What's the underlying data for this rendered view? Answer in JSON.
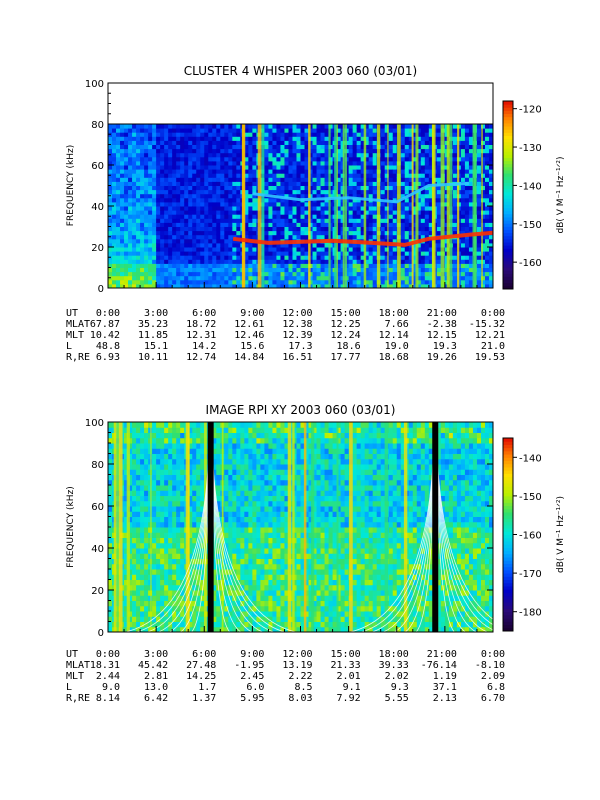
{
  "chart_data": [
    {
      "type": "heatmap",
      "title": "CLUSTER 4 WHISPER 2003 060 (03/01)",
      "ylabel": "FREQUENCY (kHz)",
      "ylim": [
        0,
        100
      ],
      "y_ticks": [
        "0",
        "20",
        "40",
        "60",
        "80",
        "100"
      ],
      "data_ceiling_khz": 80,
      "colorbar": {
        "label": "dB( V M⁻¹ Hz⁻¹ᐟ²)",
        "ticks": [
          "-120",
          "-130",
          "-140",
          "-150",
          "-160"
        ],
        "range": [
          -167,
          -118
        ]
      },
      "colorscale": [
        "#1a0033",
        "#2a0a7a",
        "#0000c8",
        "#0050ff",
        "#00b0ff",
        "#00e8d8",
        "#30e070",
        "#b8f000",
        "#ffe000",
        "#ff8000",
        "#e00000"
      ],
      "emission_bands": [
        {
          "label": "lower band",
          "segments": [
            [
              7.8,
              24
            ],
            [
              10,
              22
            ],
            [
              14,
              23
            ],
            [
              16.5,
              22
            ],
            [
              18.5,
              21
            ],
            [
              20,
              24
            ],
            [
              22.5,
              26
            ],
            [
              24,
              27
            ]
          ]
        },
        {
          "label": "upper band",
          "segments": [
            [
              9,
              46
            ],
            [
              12,
              43
            ],
            [
              15,
              44
            ],
            [
              18,
              42
            ],
            [
              20,
              50
            ],
            [
              22.5,
              51
            ]
          ]
        }
      ],
      "orbit": {
        "rows": [
          {
            "name": "UT",
            "values": [
              "0:00",
              "3:00",
              "6:00",
              "9:00",
              "12:00",
              "15:00",
              "18:00",
              "21:00",
              "0:00"
            ]
          },
          {
            "name": "MLAT",
            "values": [
              "67.87",
              "35.23",
              "18.72",
              "12.61",
              "12.38",
              "12.25",
              "7.66",
              "-2.38",
              "-15.32"
            ]
          },
          {
            "name": "MLT",
            "values": [
              "10.42",
              "11.85",
              "12.31",
              "12.46",
              "12.39",
              "12.24",
              "12.14",
              "12.15",
              "12.21"
            ]
          },
          {
            "name": "L",
            "values": [
              "48.8",
              "15.1",
              "14.2",
              "15.6",
              "17.3",
              "18.6",
              "19.0",
              "19.3",
              "21.0"
            ]
          },
          {
            "name": "R,RE",
            "values": [
              "6.93",
              "10.11",
              "12.74",
              "14.84",
              "16.51",
              "17.77",
              "18.68",
              "19.26",
              "19.53"
            ]
          }
        ]
      }
    },
    {
      "type": "heatmap",
      "title": "IMAGE RPI XY 2003 060 (03/01)",
      "ylabel": "FREQUENCY (kHz)",
      "ylim": [
        0,
        100
      ],
      "y_ticks": [
        "0",
        "20",
        "40",
        "60",
        "80",
        "100"
      ],
      "data_ceiling_khz": 100,
      "colorbar": {
        "label": "dB( V M⁻¹ Hz⁻¹ᐟ²)",
        "ticks": [
          "-140",
          "-150",
          "-160",
          "-170",
          "-180"
        ],
        "range": [
          -185,
          -135
        ]
      },
      "colorscale": [
        "#1a0033",
        "#2a0a7a",
        "#0000c8",
        "#0050ff",
        "#00b0ff",
        "#00e8d8",
        "#30e070",
        "#b8f000",
        "#ffe000",
        "#ff8000",
        "#e00000"
      ],
      "perigee_passes_ut": [
        6.4,
        20.4
      ],
      "orbit": {
        "rows": [
          {
            "name": "UT",
            "values": [
              "0:00",
              "3:00",
              "6:00",
              "9:00",
              "12:00",
              "15:00",
              "18:00",
              "21:00",
              "0:00"
            ]
          },
          {
            "name": "MLAT",
            "values": [
              "18.31",
              "45.42",
              "27.48",
              "-1.95",
              "13.19",
              "21.33",
              "39.33",
              "-76.14",
              "-8.10"
            ]
          },
          {
            "name": "MLT",
            "values": [
              "2.44",
              "2.81",
              "14.25",
              "2.45",
              "2.22",
              "2.01",
              "2.02",
              "1.19",
              "2.09"
            ]
          },
          {
            "name": "L",
            "values": [
              "9.0",
              "13.0",
              "1.7",
              "6.0",
              "8.5",
              "9.1",
              "9.3",
              "37.1",
              "6.8"
            ]
          },
          {
            "name": "R,RE",
            "values": [
              "8.14",
              "6.42",
              "1.37",
              "5.95",
              "8.03",
              "7.92",
              "5.55",
              "2.13",
              "6.70"
            ]
          }
        ]
      }
    }
  ]
}
